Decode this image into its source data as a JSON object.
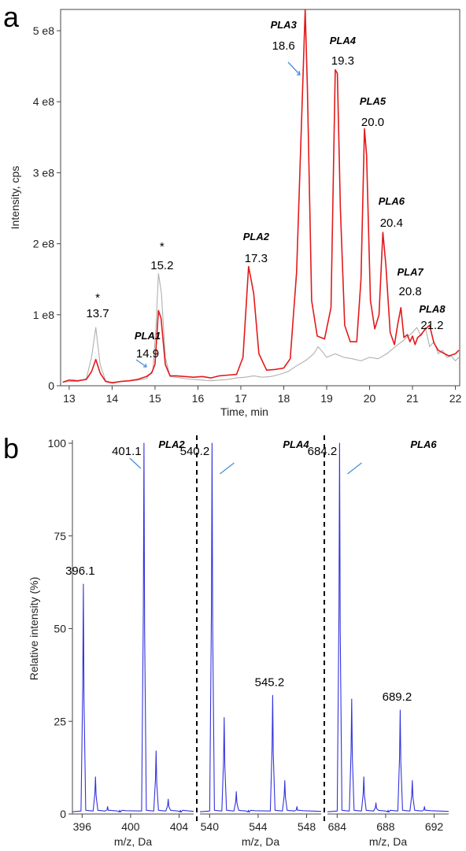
{
  "chart_data": [
    {
      "panel": "a",
      "type": "line",
      "xlabel": "Time, min",
      "ylabel": "Intensity, cps",
      "xlim": [
        12.8,
        22.1
      ],
      "ylim": [
        0,
        530000000
      ],
      "x_ticks": [
        13,
        14,
        15,
        16,
        17,
        18,
        19,
        20,
        21,
        22
      ],
      "y_ticks": [
        0,
        100000000,
        200000000,
        300000000,
        400000000,
        500000000
      ],
      "y_tick_labels": [
        "0",
        "1 e8",
        "2 e8",
        "3 e8",
        "4 e8",
        "5 e8"
      ],
      "colors": {
        "red": "#e31a1c",
        "gray": "#b0b0b0"
      },
      "series": [
        {
          "color": "#e31a1c",
          "points": [
            [
              12.85,
              5000000.0
            ],
            [
              13.0,
              8000000.0
            ],
            [
              13.2,
              7000000.0
            ],
            [
              13.4,
              9000000.0
            ],
            [
              13.52,
              20000000.0
            ],
            [
              13.62,
              37000000.0
            ],
            [
              13.72,
              18000000.0
            ],
            [
              13.85,
              6000000.0
            ],
            [
              14.0,
              4000000.0
            ],
            [
              14.2,
              6000000.0
            ],
            [
              14.4,
              7000000.0
            ],
            [
              14.6,
              9000000.0
            ],
            [
              14.8,
              13000000.0
            ],
            [
              14.92,
              18000000.0
            ],
            [
              15.0,
              30000000.0
            ],
            [
              15.08,
              106000000.0
            ],
            [
              15.14,
              95000000.0
            ],
            [
              15.24,
              30000000.0
            ],
            [
              15.35,
              14000000.0
            ],
            [
              15.5,
              14000000.0
            ],
            [
              15.7,
              13000000.0
            ],
            [
              15.9,
              12000000.0
            ],
            [
              16.1,
              13000000.0
            ],
            [
              16.3,
              11000000.0
            ],
            [
              16.5,
              14000000.0
            ],
            [
              16.7,
              15000000.0
            ],
            [
              16.9,
              16000000.0
            ],
            [
              17.05,
              40000000.0
            ],
            [
              17.18,
              168000000.0
            ],
            [
              17.3,
              130000000.0
            ],
            [
              17.42,
              45000000.0
            ],
            [
              17.6,
              22000000.0
            ],
            [
              17.8,
              23000000.0
            ],
            [
              18.0,
              25000000.0
            ],
            [
              18.15,
              38000000.0
            ],
            [
              18.3,
              160000000.0
            ],
            [
              18.43,
              400000000.0
            ],
            [
              18.5,
              530000000.0
            ],
            [
              18.55,
              420000000.0
            ],
            [
              18.65,
              120000000.0
            ],
            [
              18.78,
              70000000.0
            ],
            [
              18.95,
              66000000.0
            ],
            [
              19.1,
              110000000.0
            ],
            [
              19.2,
              445000000.0
            ],
            [
              19.25,
              440000000.0
            ],
            [
              19.32,
              250000000.0
            ],
            [
              19.42,
              85000000.0
            ],
            [
              19.55,
              62000000.0
            ],
            [
              19.7,
              62000000.0
            ],
            [
              19.8,
              150000000.0
            ],
            [
              19.88,
              362000000.0
            ],
            [
              19.93,
              325000000.0
            ],
            [
              20.02,
              120000000.0
            ],
            [
              20.12,
              80000000.0
            ],
            [
              20.22,
              100000000.0
            ],
            [
              20.31,
              216000000.0
            ],
            [
              20.38,
              170000000.0
            ],
            [
              20.48,
              75000000.0
            ],
            [
              20.58,
              58000000.0
            ],
            [
              20.66,
              88000000.0
            ],
            [
              20.73,
              110000000.0
            ],
            [
              20.8,
              68000000.0
            ],
            [
              20.88,
              72000000.0
            ],
            [
              20.94,
              62000000.0
            ],
            [
              21.0,
              70000000.0
            ],
            [
              21.06,
              58000000.0
            ],
            [
              21.12,
              68000000.0
            ],
            [
              21.2,
              72000000.0
            ],
            [
              21.3,
              80000000.0
            ],
            [
              21.4,
              85000000.0
            ],
            [
              21.5,
              60000000.0
            ],
            [
              21.6,
              50000000.0
            ],
            [
              21.75,
              45000000.0
            ],
            [
              21.85,
              42000000.0
            ],
            [
              22.0,
              45000000.0
            ],
            [
              22.08,
              50000000.0
            ]
          ]
        },
        {
          "color": "#b0b0b0",
          "points": [
            [
              12.85,
              5000000.0
            ],
            [
              13.0,
              6000000.0
            ],
            [
              13.2,
              6000000.0
            ],
            [
              13.4,
              10000000.0
            ],
            [
              13.52,
              40000000.0
            ],
            [
              13.62,
              82000000.0
            ],
            [
              13.72,
              30000000.0
            ],
            [
              13.85,
              7000000.0
            ],
            [
              14.0,
              5000000.0
            ],
            [
              14.2,
              6000000.0
            ],
            [
              14.4,
              7000000.0
            ],
            [
              14.6,
              8000000.0
            ],
            [
              14.8,
              10000000.0
            ],
            [
              14.95,
              22000000.0
            ],
            [
              15.02,
              80000000.0
            ],
            [
              15.08,
              158000000.0
            ],
            [
              15.15,
              130000000.0
            ],
            [
              15.24,
              40000000.0
            ],
            [
              15.35,
              13000000.0
            ],
            [
              15.5,
              12000000.0
            ],
            [
              15.7,
              10000000.0
            ],
            [
              15.9,
              9000000.0
            ],
            [
              16.1,
              8000000.0
            ],
            [
              16.3,
              7000000.0
            ],
            [
              16.5,
              8000000.0
            ],
            [
              16.7,
              9000000.0
            ],
            [
              16.9,
              11000000.0
            ],
            [
              17.1,
              12000000.0
            ],
            [
              17.3,
              14000000.0
            ],
            [
              17.5,
              12000000.0
            ],
            [
              17.7,
              13000000.0
            ],
            [
              17.9,
              16000000.0
            ],
            [
              18.1,
              20000000.0
            ],
            [
              18.3,
              28000000.0
            ],
            [
              18.5,
              35000000.0
            ],
            [
              18.7,
              45000000.0
            ],
            [
              18.8,
              55000000.0
            ],
            [
              18.9,
              48000000.0
            ],
            [
              19.0,
              40000000.0
            ],
            [
              19.2,
              45000000.0
            ],
            [
              19.4,
              40000000.0
            ],
            [
              19.6,
              38000000.0
            ],
            [
              19.8,
              35000000.0
            ],
            [
              20.0,
              40000000.0
            ],
            [
              20.2,
              38000000.0
            ],
            [
              20.4,
              45000000.0
            ],
            [
              20.6,
              55000000.0
            ],
            [
              20.75,
              62000000.0
            ],
            [
              20.9,
              70000000.0
            ],
            [
              21.0,
              75000000.0
            ],
            [
              21.1,
              82000000.0
            ],
            [
              21.2,
              70000000.0
            ],
            [
              21.3,
              82000000.0
            ],
            [
              21.4,
              55000000.0
            ],
            [
              21.5,
              62000000.0
            ],
            [
              21.6,
              45000000.0
            ],
            [
              21.7,
              50000000.0
            ],
            [
              21.8,
              40000000.0
            ],
            [
              21.9,
              42000000.0
            ],
            [
              22.0,
              35000000.0
            ],
            [
              22.08,
              40000000.0
            ]
          ]
        }
      ],
      "annotations": [
        {
          "name": "",
          "time": "13.7",
          "x": 13.7,
          "star": "*"
        },
        {
          "name": "PLA1",
          "time": "14.9",
          "x": 14.9,
          "star": ""
        },
        {
          "name": "",
          "time": "15.2",
          "x": 15.2,
          "star": "*"
        },
        {
          "name": "PLA2",
          "time": "17.3",
          "x": 17.3,
          "star": ""
        },
        {
          "name": "PLA3",
          "time": "18.6",
          "x": 18.6,
          "star": ""
        },
        {
          "name": "PLA4",
          "time": "19.3",
          "x": 19.3,
          "star": ""
        },
        {
          "name": "PLA5",
          "time": "20.0",
          "x": 20.0,
          "star": ""
        },
        {
          "name": "PLA6",
          "time": "20.4",
          "x": 20.4,
          "star": ""
        },
        {
          "name": "PLA7",
          "time": "20.8",
          "x": 20.8,
          "star": ""
        },
        {
          "name": "PLA8",
          "time": "21.2",
          "x": 21.2,
          "star": ""
        }
      ]
    },
    {
      "panel": "b",
      "type": "line",
      "ylabel": "Relative intensity (%)",
      "ylim": [
        0,
        100
      ],
      "y_ticks": [
        0,
        25,
        50,
        75,
        100
      ],
      "color": "#3333dd",
      "subpanels": [
        {
          "name": "PLA2",
          "xlabel": "m/z, Da",
          "xlim": [
            395.2,
            405.2
          ],
          "x_ticks": [
            396,
            400,
            404
          ],
          "peaks": [
            [
              396.1,
              62
            ],
            [
              397.1,
              10
            ],
            [
              398.1,
              2
            ],
            [
              399.1,
              1
            ],
            [
              401.1,
              100
            ],
            [
              402.1,
              17
            ],
            [
              403.1,
              4
            ],
            [
              404.1,
              1
            ]
          ],
          "labels": [
            {
              "text": "396.1",
              "x": 396.1,
              "y": 62
            },
            {
              "text": "401.1",
              "x": 401.1,
              "y": 100
            }
          ]
        },
        {
          "name": "PLA4",
          "xlabel": "m/z, Da",
          "xlim": [
            539.2,
            549.2
          ],
          "x_ticks": [
            540,
            544,
            548
          ],
          "peaks": [
            [
              540.2,
              100
            ],
            [
              541.2,
              26
            ],
            [
              542.2,
              6
            ],
            [
              543.2,
              1
            ],
            [
              545.2,
              32
            ],
            [
              546.2,
              9
            ],
            [
              547.2,
              2
            ]
          ],
          "labels": [
            {
              "text": "540.2",
              "x": 540.2,
              "y": 100
            },
            {
              "text": "545.2",
              "x": 545.2,
              "y": 32
            }
          ]
        },
        {
          "name": "PLA6",
          "xlabel": "m/z, Da",
          "xlim": [
            683.2,
            693.2
          ],
          "x_ticks": [
            684,
            688,
            692
          ],
          "peaks": [
            [
              684.2,
              100
            ],
            [
              685.2,
              31
            ],
            [
              686.2,
              10
            ],
            [
              687.2,
              3
            ],
            [
              688.2,
              1
            ],
            [
              689.2,
              28
            ],
            [
              690.2,
              9
            ],
            [
              691.2,
              2
            ]
          ],
          "labels": [
            {
              "text": "684.2",
              "x": 684.2,
              "y": 100
            },
            {
              "text": "689.2",
              "x": 689.2,
              "y": 28
            }
          ]
        }
      ]
    }
  ],
  "panel_letters": [
    "a",
    "b"
  ]
}
